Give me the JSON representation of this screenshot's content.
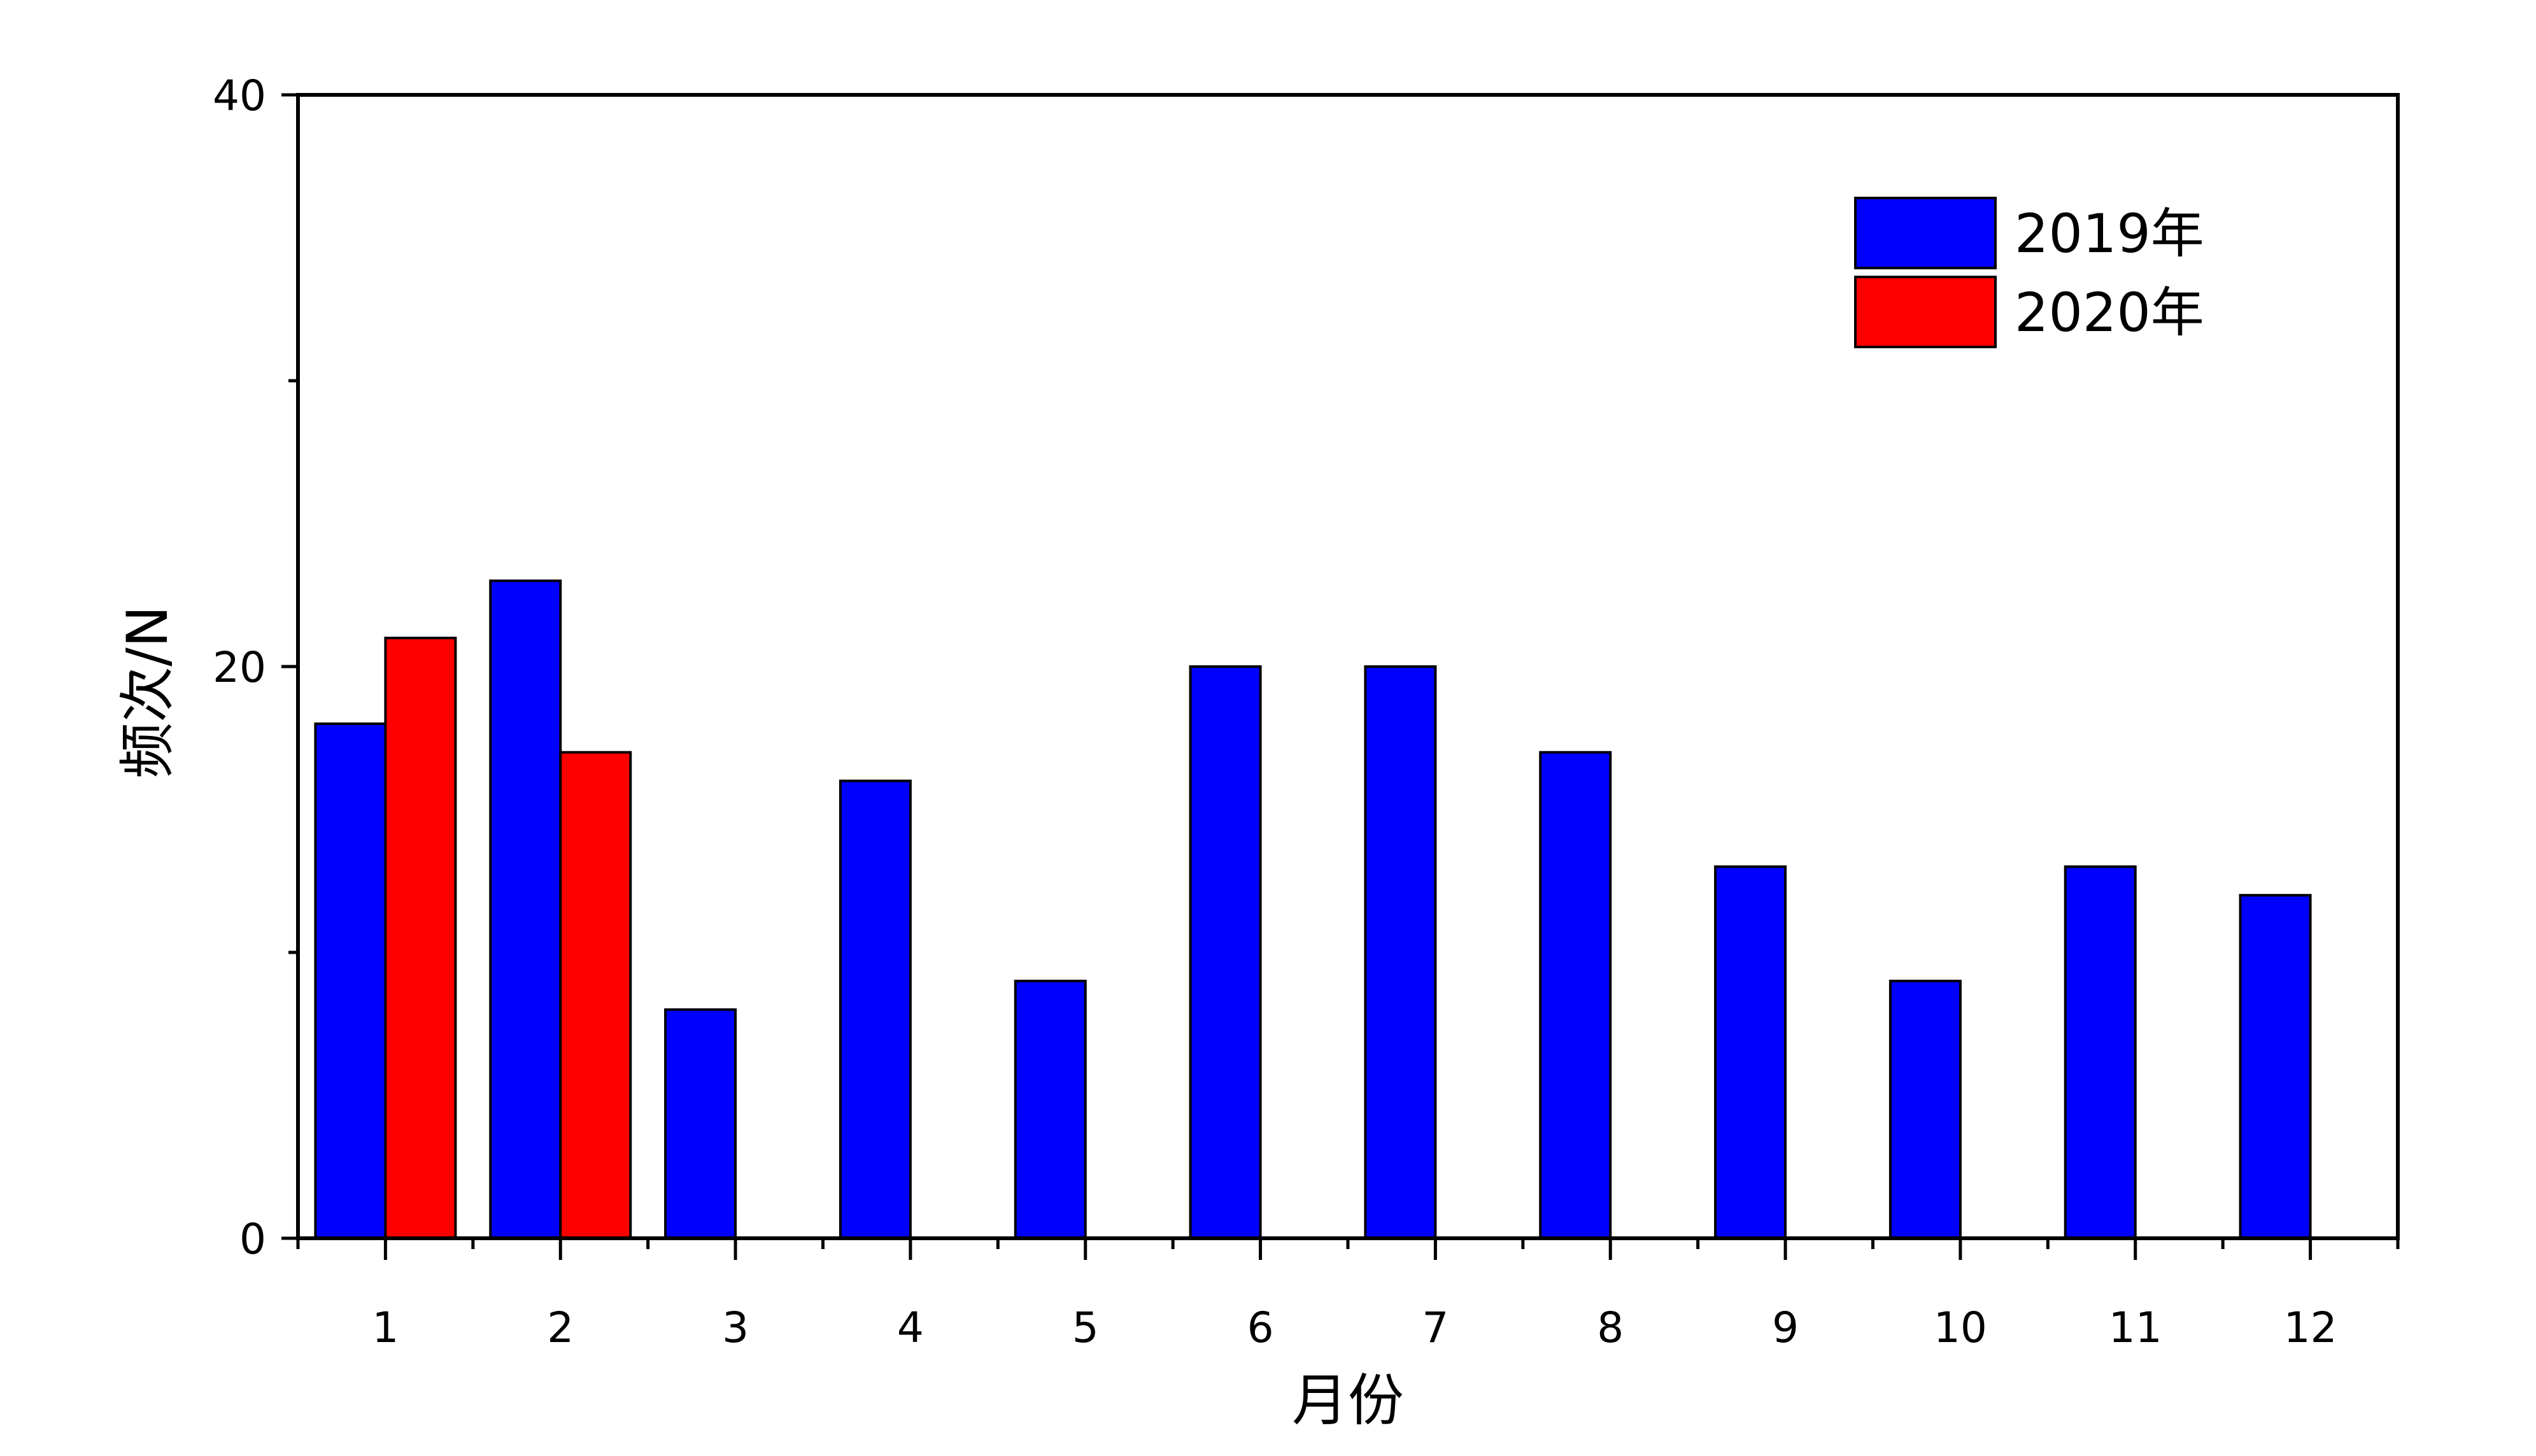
{
  "chart_data": {
    "type": "bar",
    "title": "",
    "xlabel": "月份",
    "ylabel": "频次/N",
    "categories": [
      "1",
      "2",
      "3",
      "4",
      "5",
      "6",
      "7",
      "8",
      "9",
      "10",
      "11",
      "12"
    ],
    "series": [
      {
        "name": "2019年",
        "color": "#0000ff",
        "values": [
          18,
          23,
          8,
          16,
          9,
          20,
          20,
          17,
          13,
          9,
          13,
          12
        ]
      },
      {
        "name": "2020年",
        "color": "#ff0000",
        "values": [
          21,
          17,
          null,
          null,
          null,
          null,
          null,
          null,
          null,
          null,
          null,
          null
        ]
      }
    ],
    "ylim": [
      0,
      40
    ],
    "yticks": [
      "0",
      "20",
      "40"
    ],
    "grid": false,
    "legend_position": "top-right"
  }
}
